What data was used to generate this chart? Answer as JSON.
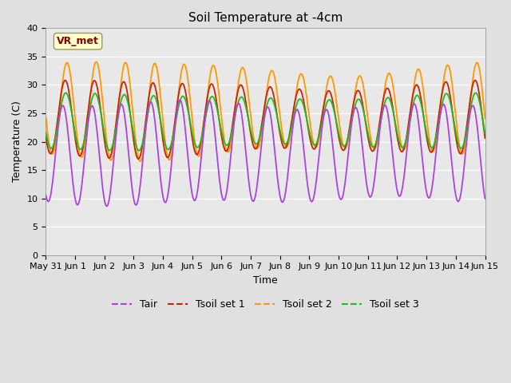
{
  "title": "Soil Temperature at -4cm",
  "xlabel": "Time",
  "ylabel": "Temperature (C)",
  "ylim": [
    0,
    40
  ],
  "yticks": [
    0,
    5,
    10,
    15,
    20,
    25,
    30,
    35,
    40
  ],
  "background_color": "#e0e0e0",
  "plot_bg_color": "#e8e8e8",
  "colors": {
    "Tair": "#aa44dd",
    "Tsoil1": "#cc2200",
    "Tsoil2": "#ff9900",
    "Tsoil3": "#22bb22"
  },
  "legend_labels": [
    "Tair",
    "Tsoil set 1",
    "Tsoil set 2",
    "Tsoil set 3"
  ],
  "annotation_text": "VR_met",
  "annotation_color": "#880000",
  "annotation_bg": "#ffffcc",
  "n_points": 720,
  "xtick_positions": [
    0,
    1,
    2,
    3,
    4,
    5,
    6,
    7,
    8,
    9,
    10,
    11,
    12,
    13,
    14,
    15
  ],
  "xtick_labels": [
    "May 31",
    "Jun 1",
    "Jun 2",
    "Jun 3",
    "Jun 4",
    "Jun 5",
    "Jun 6",
    "Jun 7",
    "Jun 8",
    "Jun 9",
    "Jun 10",
    "Jun 11",
    "Jun 12",
    "Jun 13",
    "Jun 14",
    "Jun 15"
  ]
}
